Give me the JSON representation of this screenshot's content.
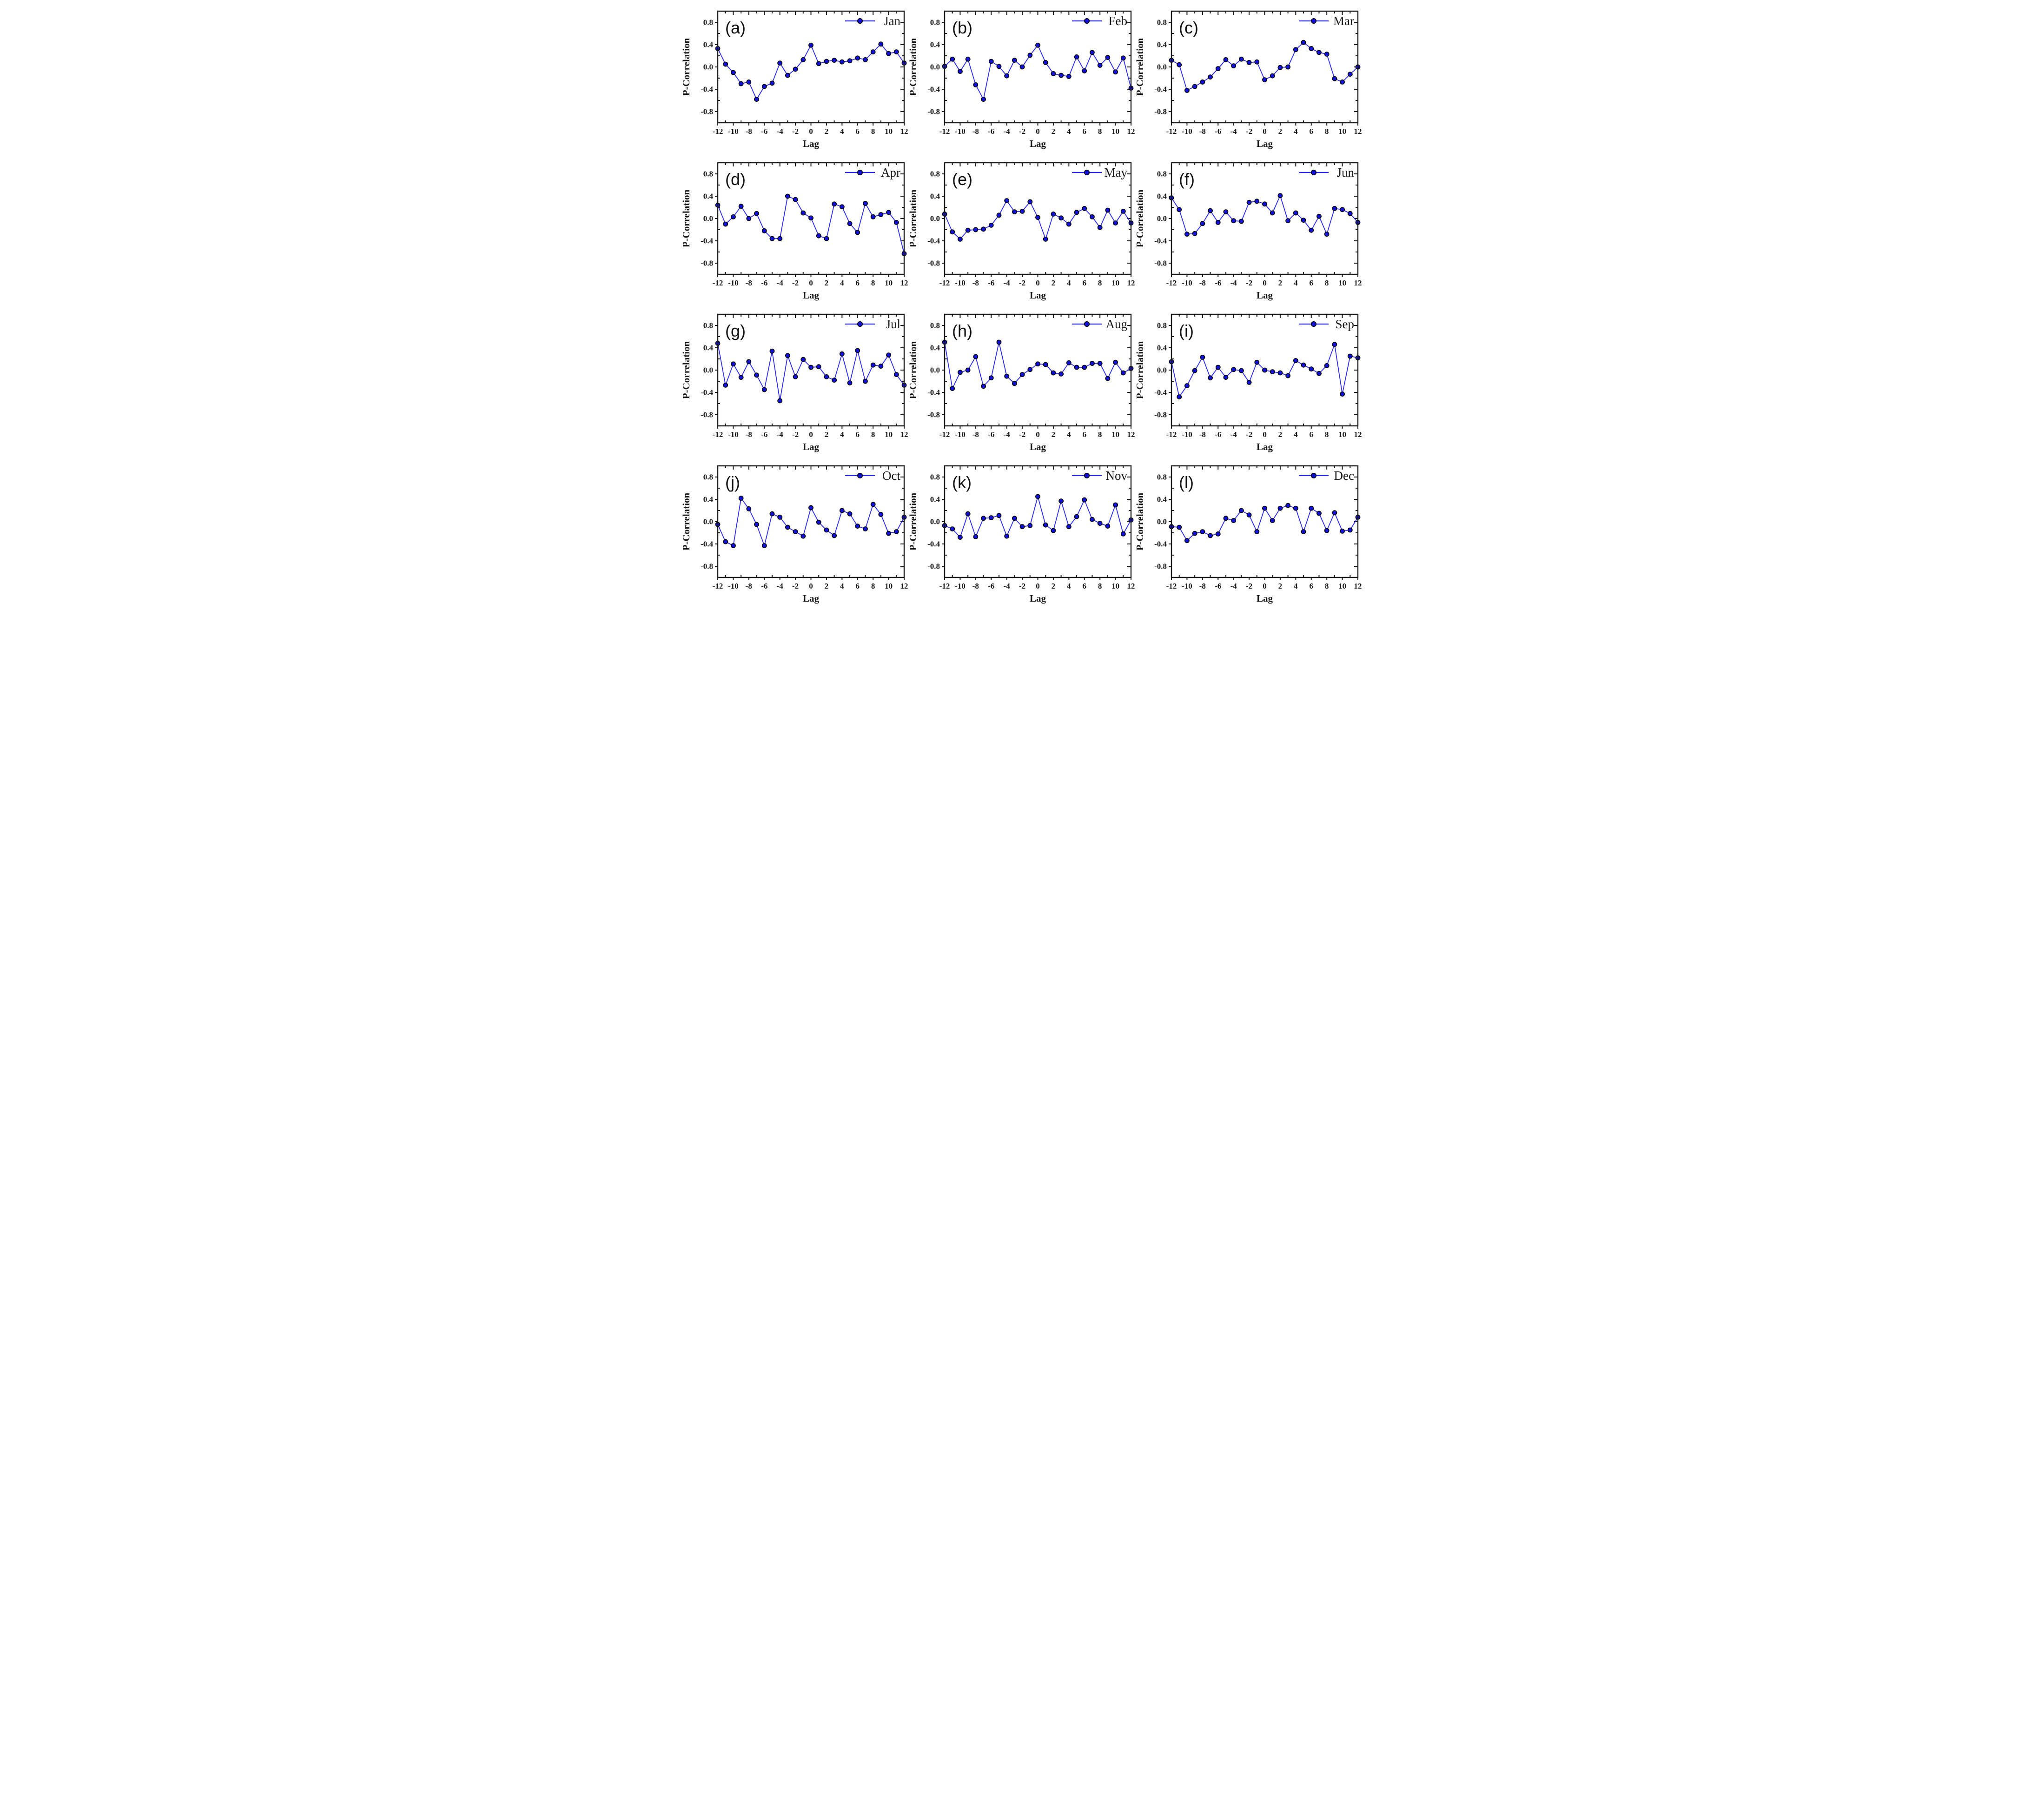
{
  "figure": {
    "background": "#ffffff",
    "line_color": "#2a2af0",
    "marker_color": "#1111dd",
    "marker_edge_color": "#000000",
    "axis_color": "#1a1a1a",
    "text_color": "#1a1a1a",
    "legend_position": "top-right"
  },
  "chart_data": [
    {
      "type": "line",
      "panel_letter": "(a)",
      "legend": "Jan",
      "xlabel": "Lag",
      "ylabel": "P-Correlation",
      "xlim": [
        -12,
        12
      ],
      "ylim": [
        -1.0,
        1.0
      ],
      "x_tick_labels": [
        "-12",
        "-10",
        "-8",
        "-6",
        "-4",
        "-2",
        "0",
        "2",
        "4",
        "6",
        "8",
        "10",
        "12"
      ],
      "y_tick_labels": [
        "0.8",
        "0.4",
        "0.0",
        "-0.4",
        "-0.8"
      ],
      "x_minor_step": 1,
      "y_minor_step": 0.2,
      "grid": false,
      "x": [
        -12,
        -11,
        -10,
        -9,
        -8,
        -7,
        -6,
        -5,
        -4,
        -3,
        -2,
        -1,
        0,
        1,
        2,
        3,
        4,
        5,
        6,
        7,
        8,
        9,
        10,
        11,
        12
      ],
      "values": [
        0.33,
        0.05,
        -0.1,
        -0.3,
        -0.27,
        -0.58,
        -0.35,
        -0.29,
        0.07,
        -0.15,
        -0.04,
        0.13,
        0.39,
        0.06,
        0.1,
        0.12,
        0.09,
        0.11,
        0.16,
        0.13,
        0.27,
        0.41,
        0.24,
        0.27,
        0.07
      ]
    },
    {
      "type": "line",
      "panel_letter": "(b)",
      "legend": "Feb",
      "xlabel": "Lag",
      "ylabel": "P-Correlation",
      "xlim": [
        -12,
        12
      ],
      "ylim": [
        -1.0,
        1.0
      ],
      "x_tick_labels": [
        "-12",
        "-10",
        "-8",
        "-6",
        "-4",
        "-2",
        "0",
        "2",
        "4",
        "6",
        "8",
        "10",
        "12"
      ],
      "y_tick_labels": [
        "0.8",
        "0.4",
        "0.0",
        "-0.4",
        "-0.8"
      ],
      "x_minor_step": 1,
      "y_minor_step": 0.2,
      "grid": false,
      "x": [
        -12,
        -11,
        -10,
        -9,
        -8,
        -7,
        -6,
        -5,
        -4,
        -3,
        -2,
        -1,
        0,
        1,
        2,
        3,
        4,
        5,
        6,
        7,
        8,
        9,
        10,
        11,
        12
      ],
      "values": [
        0.01,
        0.14,
        -0.08,
        0.14,
        -0.32,
        -0.58,
        0.1,
        0.01,
        -0.16,
        0.12,
        0.0,
        0.21,
        0.39,
        0.08,
        -0.12,
        -0.15,
        -0.17,
        0.18,
        -0.07,
        0.26,
        0.03,
        0.17,
        -0.09,
        0.16,
        -0.38
      ]
    },
    {
      "type": "line",
      "panel_letter": "(c)",
      "legend": "Mar",
      "xlabel": "Lag",
      "ylabel": "P-Correlation",
      "xlim": [
        -12,
        12
      ],
      "ylim": [
        -1.0,
        1.0
      ],
      "x_tick_labels": [
        "-12",
        "-10",
        "-8",
        "-6",
        "-4",
        "-2",
        "0",
        "2",
        "4",
        "6",
        "8",
        "10",
        "12"
      ],
      "y_tick_labels": [
        "0.8",
        "0.4",
        "0.0",
        "-0.4",
        "-0.8"
      ],
      "x_minor_step": 1,
      "y_minor_step": 0.2,
      "grid": false,
      "x": [
        -12,
        -11,
        -10,
        -9,
        -8,
        -7,
        -6,
        -5,
        -4,
        -3,
        -2,
        -1,
        0,
        1,
        2,
        3,
        4,
        5,
        6,
        7,
        8,
        9,
        10,
        11,
        12
      ],
      "values": [
        0.12,
        0.04,
        -0.42,
        -0.35,
        -0.27,
        -0.18,
        -0.03,
        0.13,
        0.02,
        0.14,
        0.08,
        0.09,
        -0.23,
        -0.16,
        -0.01,
        0.0,
        0.31,
        0.44,
        0.33,
        0.26,
        0.23,
        -0.21,
        -0.27,
        -0.13,
        0.0
      ]
    },
    {
      "type": "line",
      "panel_letter": "(d)",
      "legend": "Apr",
      "xlabel": "Lag",
      "ylabel": "P-Correlation",
      "xlim": [
        -12,
        12
      ],
      "ylim": [
        -1.0,
        1.0
      ],
      "x_tick_labels": [
        "-12",
        "-10",
        "-8",
        "-6",
        "-4",
        "-2",
        "0",
        "2",
        "4",
        "6",
        "8",
        "10",
        "12"
      ],
      "y_tick_labels": [
        "0.8",
        "0.4",
        "0.0",
        "-0.4",
        "-0.8"
      ],
      "x_minor_step": 1,
      "y_minor_step": 0.2,
      "grid": false,
      "x": [
        -12,
        -11,
        -10,
        -9,
        -8,
        -7,
        -6,
        -5,
        -4,
        -3,
        -2,
        -1,
        0,
        1,
        2,
        3,
        4,
        5,
        6,
        7,
        8,
        9,
        10,
        11,
        12
      ],
      "values": [
        0.24,
        -0.1,
        0.03,
        0.22,
        0.0,
        0.09,
        -0.22,
        -0.36,
        -0.36,
        0.4,
        0.34,
        0.1,
        0.01,
        -0.31,
        -0.36,
        0.26,
        0.21,
        -0.09,
        -0.25,
        0.27,
        0.03,
        0.07,
        0.11,
        -0.07,
        -0.63
      ]
    },
    {
      "type": "line",
      "panel_letter": "(e)",
      "legend": "May",
      "xlabel": "Lag",
      "ylabel": "P-Correlation",
      "xlim": [
        -12,
        12
      ],
      "ylim": [
        -1.0,
        1.0
      ],
      "x_tick_labels": [
        "-12",
        "-10",
        "-8",
        "-6",
        "-4",
        "-2",
        "0",
        "2",
        "4",
        "6",
        "8",
        "10",
        "12"
      ],
      "y_tick_labels": [
        "0.8",
        "0.4",
        "0.0",
        "-0.4",
        "-0.8"
      ],
      "x_minor_step": 1,
      "y_minor_step": 0.2,
      "grid": false,
      "x": [
        -12,
        -11,
        -10,
        -9,
        -8,
        -7,
        -6,
        -5,
        -4,
        -3,
        -2,
        -1,
        0,
        1,
        2,
        3,
        4,
        5,
        6,
        7,
        8,
        9,
        10,
        11,
        12
      ],
      "values": [
        0.08,
        -0.24,
        -0.37,
        -0.21,
        -0.2,
        -0.19,
        -0.12,
        0.06,
        0.32,
        0.12,
        0.13,
        0.3,
        0.02,
        -0.37,
        0.08,
        0.01,
        -0.1,
        0.11,
        0.18,
        0.03,
        -0.16,
        0.15,
        -0.08,
        0.13,
        -0.08
      ]
    },
    {
      "type": "line",
      "panel_letter": "(f)",
      "legend": "Jun",
      "xlabel": "Lag",
      "ylabel": "P-Correlation",
      "xlim": [
        -12,
        12
      ],
      "ylim": [
        -1.0,
        1.0
      ],
      "x_tick_labels": [
        "-12",
        "-10",
        "-8",
        "-6",
        "-4",
        "-2",
        "0",
        "2",
        "4",
        "6",
        "8",
        "10",
        "12"
      ],
      "y_tick_labels": [
        "0.8",
        "0.4",
        "0.0",
        "-0.4",
        "-0.8"
      ],
      "x_minor_step": 1,
      "y_minor_step": 0.2,
      "grid": false,
      "x": [
        -12,
        -11,
        -10,
        -9,
        -8,
        -7,
        -6,
        -5,
        -4,
        -3,
        -2,
        -1,
        0,
        1,
        2,
        3,
        4,
        5,
        6,
        7,
        8,
        9,
        10,
        11,
        12
      ],
      "values": [
        0.37,
        0.16,
        -0.28,
        -0.27,
        -0.09,
        0.14,
        -0.07,
        0.12,
        -0.04,
        -0.05,
        0.29,
        0.31,
        0.26,
        0.1,
        0.41,
        -0.04,
        0.1,
        -0.03,
        -0.21,
        0.04,
        -0.28,
        0.18,
        0.16,
        0.09,
        -0.07
      ]
    },
    {
      "type": "line",
      "panel_letter": "(g)",
      "legend": "Jul",
      "xlabel": "Lag",
      "ylabel": "P-Correlation",
      "xlim": [
        -12,
        12
      ],
      "ylim": [
        -1.0,
        1.0
      ],
      "x_tick_labels": [
        "-12",
        "-10",
        "-8",
        "-6",
        "-4",
        "-2",
        "0",
        "2",
        "4",
        "6",
        "8",
        "10",
        "12"
      ],
      "y_tick_labels": [
        "0.8",
        "0.4",
        "0.0",
        "-0.4",
        "-0.8"
      ],
      "x_minor_step": 1,
      "y_minor_step": 0.2,
      "grid": false,
      "x": [
        -12,
        -11,
        -10,
        -9,
        -8,
        -7,
        -6,
        -5,
        -4,
        -3,
        -2,
        -1,
        0,
        1,
        2,
        3,
        4,
        5,
        6,
        7,
        8,
        9,
        10,
        11,
        12
      ],
      "values": [
        0.48,
        -0.27,
        0.11,
        -0.13,
        0.15,
        -0.09,
        -0.35,
        0.34,
        -0.55,
        0.26,
        -0.12,
        0.19,
        0.05,
        0.06,
        -0.12,
        -0.18,
        0.29,
        -0.23,
        0.35,
        -0.2,
        0.09,
        0.07,
        0.27,
        -0.08,
        -0.27
      ]
    },
    {
      "type": "line",
      "panel_letter": "(h)",
      "legend": "Aug",
      "xlabel": "Lag",
      "ylabel": "P-Correlation",
      "xlim": [
        -12,
        12
      ],
      "ylim": [
        -1.0,
        1.0
      ],
      "x_tick_labels": [
        "-12",
        "-10",
        "-8",
        "-6",
        "-4",
        "-2",
        "0",
        "2",
        "4",
        "6",
        "8",
        "10",
        "12"
      ],
      "y_tick_labels": [
        "0.8",
        "0.4",
        "0.0",
        "-0.4",
        "-0.8"
      ],
      "x_minor_step": 1,
      "y_minor_step": 0.2,
      "grid": false,
      "x": [
        -12,
        -11,
        -10,
        -9,
        -8,
        -7,
        -6,
        -5,
        -4,
        -3,
        -2,
        -1,
        0,
        1,
        2,
        3,
        4,
        5,
        6,
        7,
        8,
        9,
        10,
        11,
        12
      ],
      "values": [
        0.5,
        -0.33,
        -0.04,
        0.0,
        0.24,
        -0.29,
        -0.14,
        0.5,
        -0.11,
        -0.24,
        -0.08,
        0.01,
        0.11,
        0.1,
        -0.05,
        -0.07,
        0.13,
        0.05,
        0.05,
        0.12,
        0.12,
        -0.15,
        0.14,
        -0.05,
        0.03
      ]
    },
    {
      "type": "line",
      "panel_letter": "(i)",
      "legend": "Sep",
      "xlabel": "Lag",
      "ylabel": "P-Correlation",
      "xlim": [
        -12,
        12
      ],
      "ylim": [
        -1.0,
        1.0
      ],
      "x_tick_labels": [
        "-12",
        "-10",
        "-8",
        "-6",
        "-4",
        "-2",
        "0",
        "2",
        "4",
        "6",
        "8",
        "10",
        "12"
      ],
      "y_tick_labels": [
        "0.8",
        "0.4",
        "0.0",
        "-0.4",
        "-0.8"
      ],
      "x_minor_step": 1,
      "y_minor_step": 0.2,
      "grid": false,
      "x": [
        -12,
        -11,
        -10,
        -9,
        -8,
        -7,
        -6,
        -5,
        -4,
        -3,
        -2,
        -1,
        0,
        1,
        2,
        3,
        4,
        5,
        6,
        7,
        8,
        9,
        10,
        11,
        12
      ],
      "values": [
        0.15,
        -0.48,
        -0.28,
        -0.01,
        0.23,
        -0.14,
        0.05,
        -0.13,
        0.01,
        -0.01,
        -0.22,
        0.14,
        0.0,
        -0.03,
        -0.05,
        -0.1,
        0.17,
        0.09,
        0.02,
        -0.06,
        0.08,
        0.46,
        -0.43,
        0.25,
        0.22
      ]
    },
    {
      "type": "line",
      "panel_letter": "(j)",
      "legend": "Oct",
      "xlabel": "Lag",
      "ylabel": "P-Correlation",
      "xlim": [
        -12,
        12
      ],
      "ylim": [
        -1.0,
        1.0
      ],
      "x_tick_labels": [
        "-12",
        "-10",
        "-8",
        "-6",
        "-4",
        "-2",
        "0",
        "2",
        "4",
        "6",
        "8",
        "10",
        "12"
      ],
      "y_tick_labels": [
        "0.8",
        "0.4",
        "0.0",
        "-0.4",
        "-0.8"
      ],
      "x_minor_step": 1,
      "y_minor_step": 0.2,
      "grid": false,
      "x": [
        -12,
        -11,
        -10,
        -9,
        -8,
        -7,
        -6,
        -5,
        -4,
        -3,
        -2,
        -1,
        0,
        1,
        2,
        3,
        4,
        5,
        6,
        7,
        8,
        9,
        10,
        11,
        12
      ],
      "values": [
        -0.05,
        -0.36,
        -0.43,
        0.42,
        0.23,
        -0.05,
        -0.43,
        0.14,
        0.08,
        -0.1,
        -0.18,
        -0.26,
        0.25,
        -0.01,
        -0.15,
        -0.25,
        0.2,
        0.14,
        -0.08,
        -0.13,
        0.31,
        0.13,
        -0.21,
        -0.18,
        0.08
      ]
    },
    {
      "type": "line",
      "panel_letter": "(k)",
      "legend": "Nov",
      "xlabel": "Lag",
      "ylabel": "P-Correlation",
      "xlim": [
        -12,
        12
      ],
      "ylim": [
        -1.0,
        1.0
      ],
      "x_tick_labels": [
        "-12",
        "-10",
        "-8",
        "-6",
        "-4",
        "-2",
        "0",
        "2",
        "4",
        "6",
        "8",
        "10",
        "12"
      ],
      "y_tick_labels": [
        "0.8",
        "0.4",
        "0.0",
        "-0.4",
        "-0.8"
      ],
      "x_minor_step": 1,
      "y_minor_step": 0.2,
      "grid": false,
      "x": [
        -12,
        -11,
        -10,
        -9,
        -8,
        -7,
        -6,
        -5,
        -4,
        -3,
        -2,
        -1,
        0,
        1,
        2,
        3,
        4,
        5,
        6,
        7,
        8,
        9,
        10,
        11,
        12
      ],
      "values": [
        -0.07,
        -0.13,
        -0.28,
        0.14,
        -0.27,
        0.06,
        0.07,
        0.11,
        -0.26,
        0.06,
        -0.09,
        -0.07,
        0.45,
        -0.06,
        -0.16,
        0.37,
        -0.09,
        0.09,
        0.39,
        0.04,
        -0.03,
        -0.08,
        0.3,
        -0.22,
        0.03
      ]
    },
    {
      "type": "line",
      "panel_letter": "(l)",
      "legend": "Dec",
      "xlabel": "Lag",
      "ylabel": "P-Correlation",
      "xlim": [
        -12,
        12
      ],
      "ylim": [
        -1.0,
        1.0
      ],
      "x_tick_labels": [
        "-12",
        "-10",
        "-8",
        "-6",
        "-4",
        "-2",
        "0",
        "2",
        "4",
        "6",
        "8",
        "10",
        "12"
      ],
      "y_tick_labels": [
        "0.8",
        "0.4",
        "0.0",
        "-0.4",
        "-0.8"
      ],
      "x_minor_step": 1,
      "y_minor_step": 0.2,
      "grid": false,
      "x": [
        -12,
        -11,
        -10,
        -9,
        -8,
        -7,
        -6,
        -5,
        -4,
        -3,
        -2,
        -1,
        0,
        1,
        2,
        3,
        4,
        5,
        6,
        7,
        8,
        9,
        10,
        11,
        12
      ],
      "values": [
        -0.09,
        -0.1,
        -0.34,
        -0.21,
        -0.18,
        -0.25,
        -0.22,
        0.06,
        0.02,
        0.2,
        0.12,
        -0.18,
        0.24,
        0.02,
        0.24,
        0.29,
        0.24,
        -0.18,
        0.24,
        0.15,
        -0.16,
        0.16,
        -0.17,
        -0.15,
        0.08
      ]
    }
  ]
}
